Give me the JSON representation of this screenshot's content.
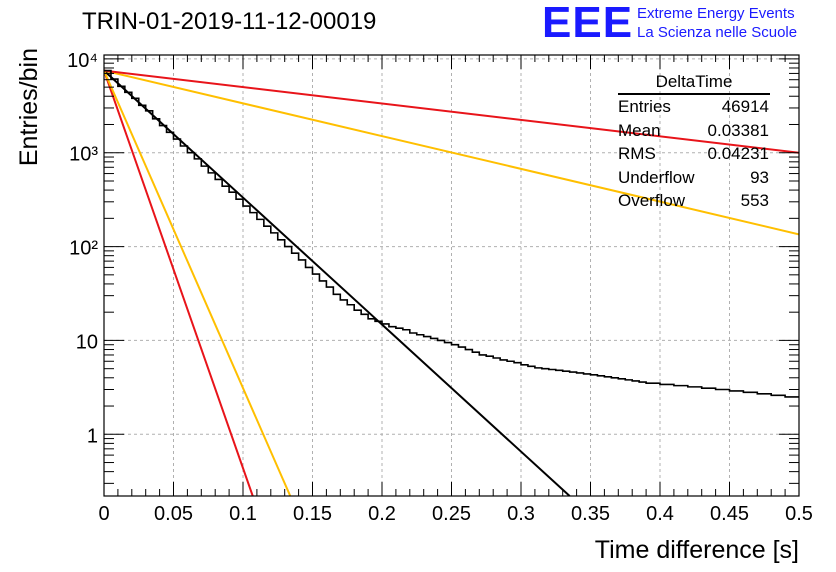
{
  "title": "TRIN-01-2019-11-12-00019",
  "logo": {
    "mark": "EEE",
    "line1": "Extreme Energy Events",
    "line2": "La Scienza nelle Scuole"
  },
  "stats": {
    "title": "DeltaTime",
    "rows": [
      {
        "label": "Entries",
        "value": "46914"
      },
      {
        "label": "Mean",
        "value": "0.03381"
      },
      {
        "label": "RMS",
        "value": "0.04231"
      },
      {
        "label": "Underflow",
        "value": "93"
      },
      {
        "label": "Overflow",
        "value": "553"
      }
    ]
  },
  "colors": {
    "histogram": "#000000",
    "fit": "#000000",
    "red": "#e8141a",
    "orange": "#ffbf00",
    "grid": "#b0b0b0"
  },
  "chart_data": {
    "type": "line",
    "title": "TRIN-01-2019-11-12-00019",
    "xlabel": "Time difference [s]",
    "ylabel": "Entries/bin",
    "xlim": [
      0,
      0.5
    ],
    "ylim": [
      0.22,
      11000
    ],
    "yscale": "log",
    "grid": true,
    "x_ticks": [
      0,
      0.05,
      0.1,
      0.15,
      0.2,
      0.25,
      0.3,
      0.35,
      0.4,
      0.45,
      0.5
    ],
    "x_tick_labels": [
      "0",
      "0.05",
      "0.1",
      "0.15",
      "0.2",
      "0.25",
      "0.3",
      "0.35",
      "0.4",
      "0.45",
      "0.5"
    ],
    "y_ticks": [
      1,
      10,
      100,
      1000,
      10000
    ],
    "y_tick_labels": [
      "1",
      "10",
      "10²",
      "10³",
      "10⁴"
    ],
    "histogram": {
      "bin_width": 0.005,
      "x_start": 0,
      "values": [
        7500,
        6100,
        5100,
        4400,
        3800,
        3200,
        2800,
        2300,
        1950,
        1650,
        1400,
        1180,
        1000,
        860,
        720,
        610,
        520,
        440,
        380,
        320,
        270,
        230,
        195,
        165,
        140,
        118,
        100,
        85,
        72,
        60,
        51,
        43,
        37,
        31,
        27,
        24,
        21,
        19,
        17,
        16,
        15,
        14,
        13.5,
        13,
        12,
        11.5,
        11,
        10.5,
        10,
        9.5,
        9,
        8.5,
        8,
        7.5,
        7,
        6.8,
        6.5,
        6.2,
        6,
        5.8,
        5.5,
        5.3,
        5.1,
        5,
        4.9,
        4.8,
        4.7,
        4.6,
        4.5,
        4.4,
        4.3,
        4.2,
        4.1,
        4,
        3.9,
        3.8,
        3.7,
        3.6,
        3.5,
        3.5,
        3.4,
        3.4,
        3.3,
        3.3,
        3.2,
        3.2,
        3.1,
        3.1,
        3,
        3,
        2.9,
        2.9,
        2.8,
        2.8,
        2.7,
        2.7,
        2.6,
        2.6,
        2.5,
        2.5
      ]
    },
    "curves": [
      {
        "color": "black",
        "points": [
          [
            0,
            7500
          ],
          [
            0.335,
            0.22
          ]
        ]
      },
      {
        "color": "red",
        "points": [
          [
            0,
            7500
          ],
          [
            0.107,
            0.22
          ]
        ]
      },
      {
        "color": "orange",
        "points": [
          [
            0,
            7500
          ],
          [
            0.134,
            0.22
          ]
        ]
      },
      {
        "color": "orange",
        "points": [
          [
            0,
            7500
          ],
          [
            0.5,
            135
          ]
        ]
      },
      {
        "color": "red",
        "points": [
          [
            0,
            7500
          ],
          [
            0.5,
            1000
          ]
        ]
      }
    ]
  }
}
